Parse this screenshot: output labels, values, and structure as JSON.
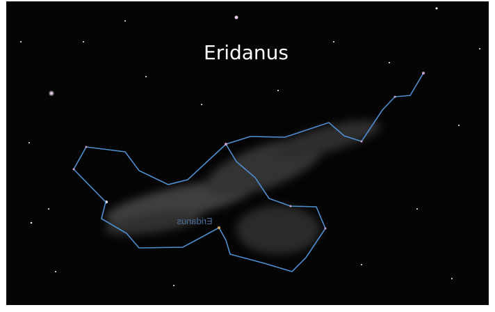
{
  "title": "Eridanus",
  "constellation_label": "Eridanus"
}
